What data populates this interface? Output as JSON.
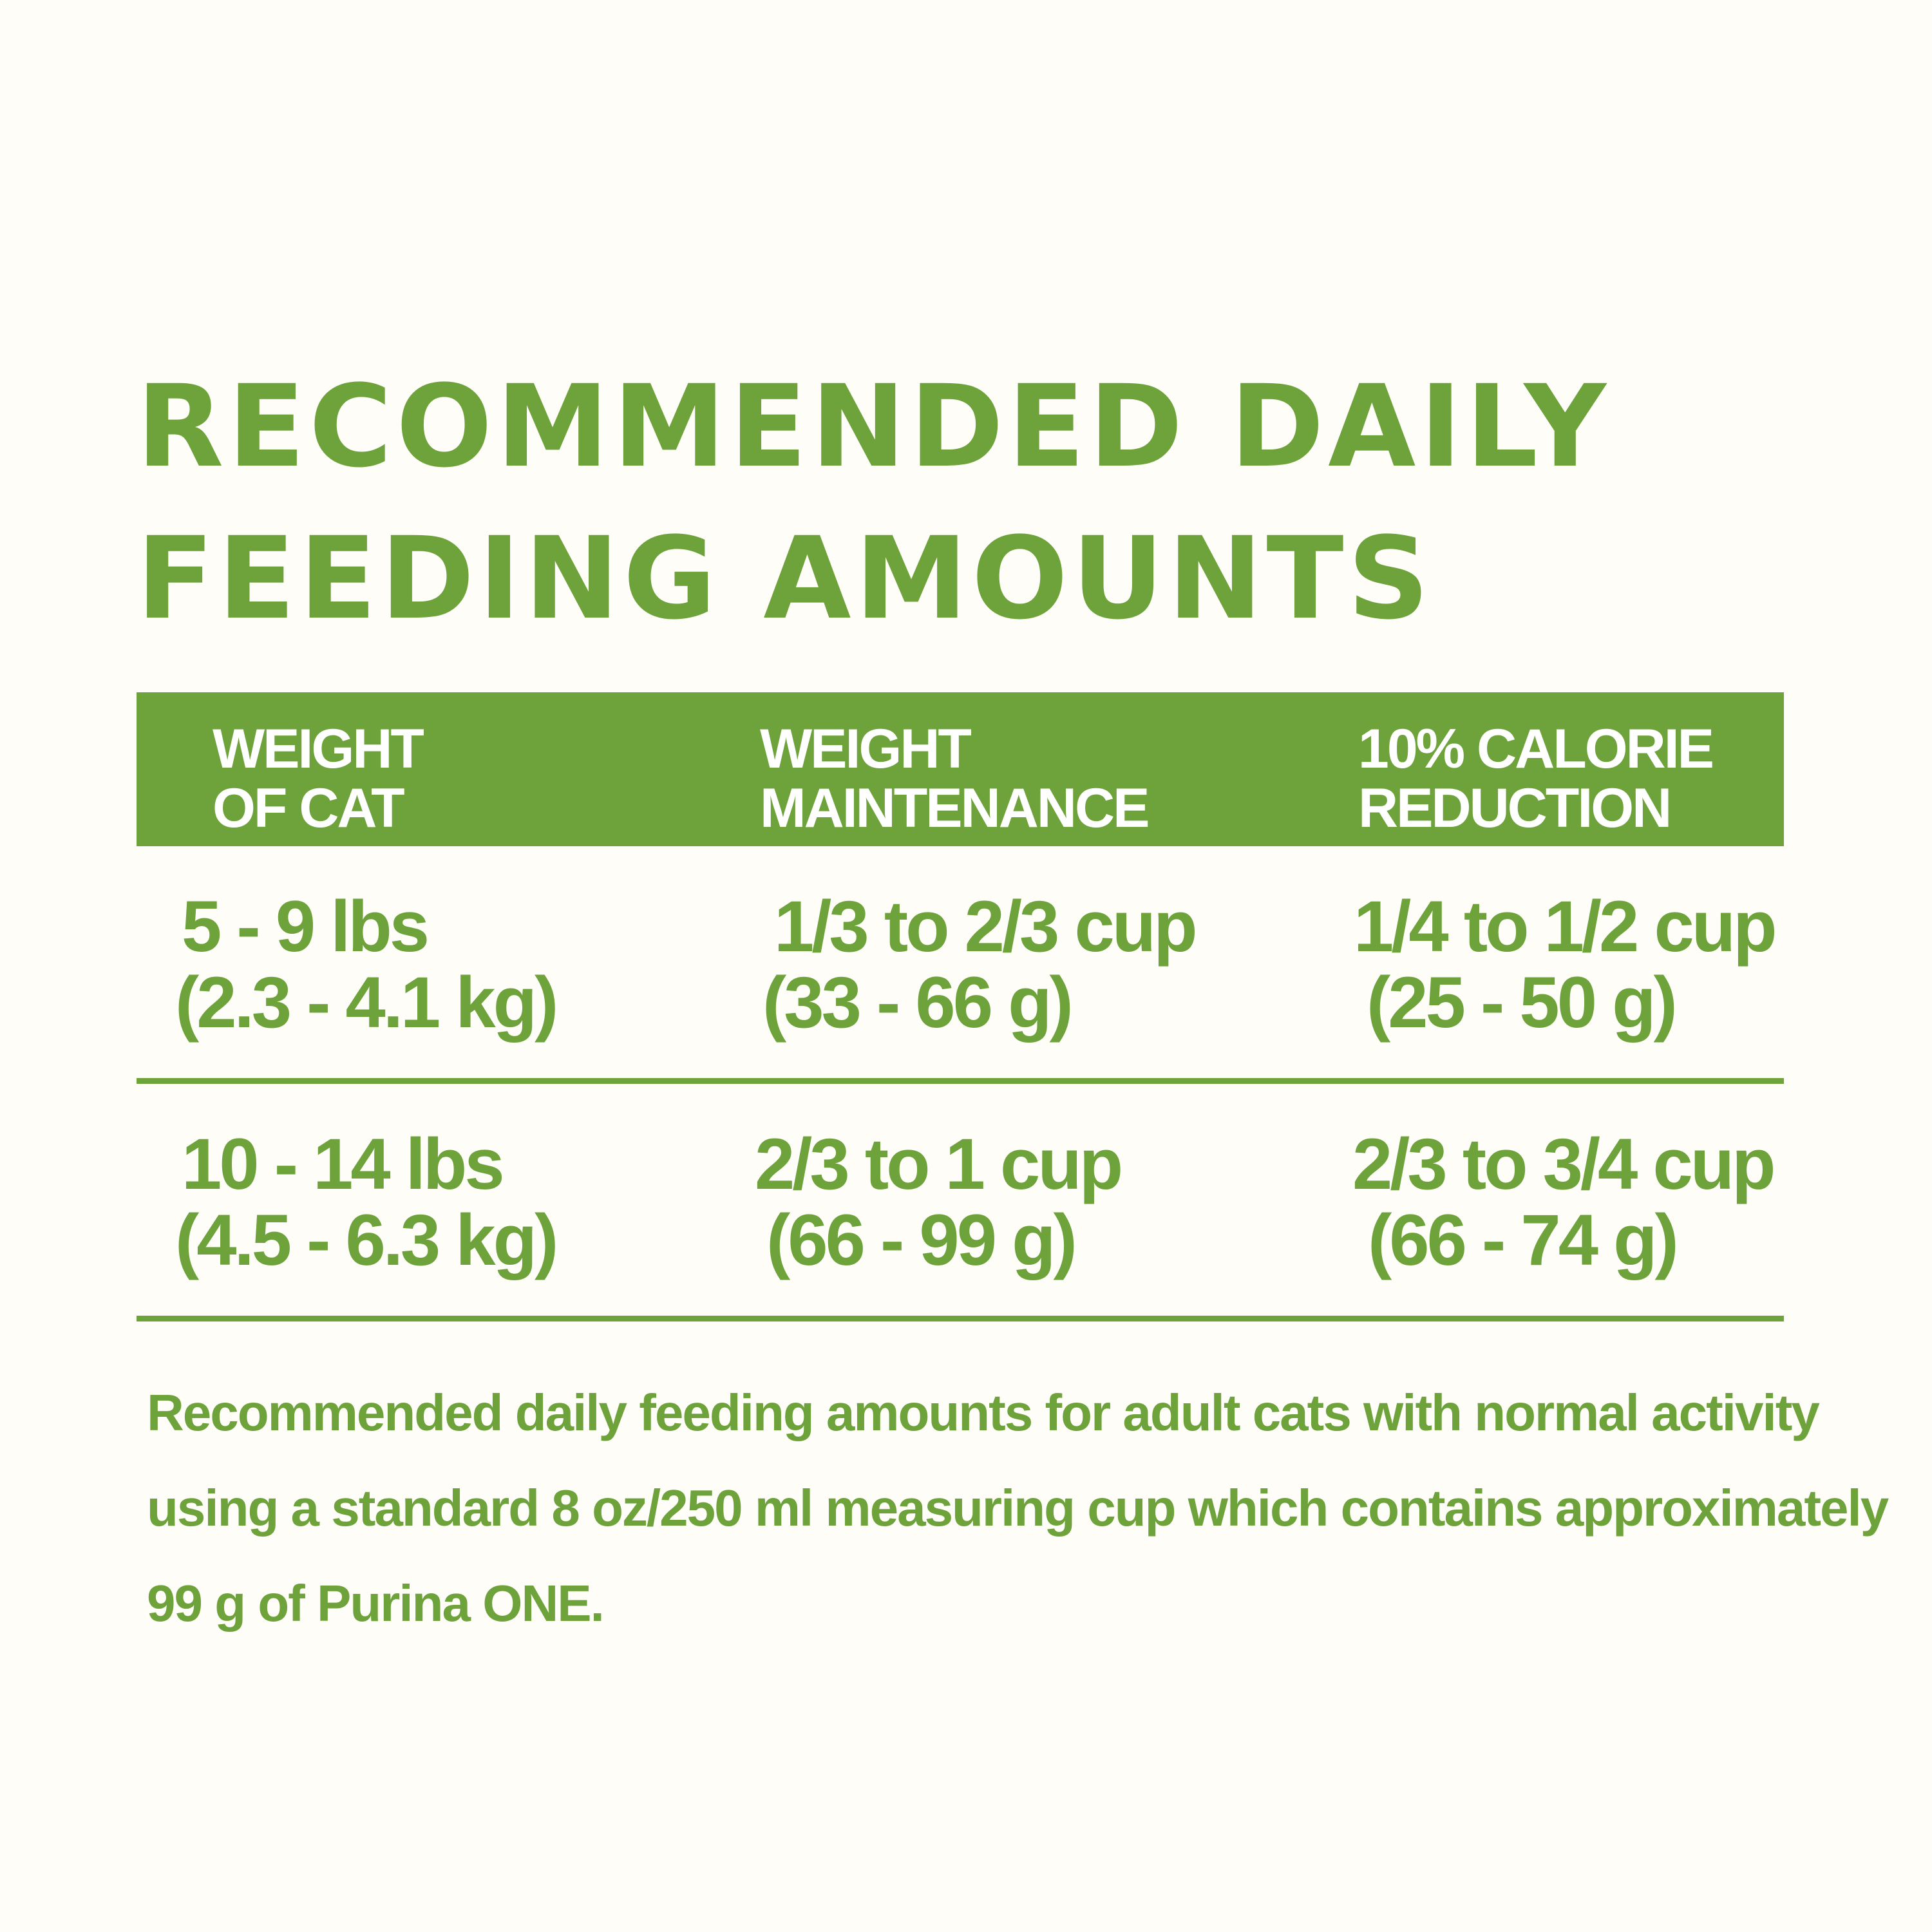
{
  "title": {
    "line1": "RECOMMENDED DAILY",
    "line2": "FEEDING AMOUNTS"
  },
  "table": {
    "headers": [
      {
        "line1": "WEIGHT",
        "line2": "OF CAT"
      },
      {
        "line1": "WEIGHT",
        "line2": "MAINTENANCE"
      },
      {
        "line1": "10% CALORIE",
        "line2": "REDUCTION"
      }
    ],
    "rows": [
      {
        "cat_weight": {
          "line1": "5 - 9 lbs",
          "line2": "(2.3 - 4.1 kg)"
        },
        "maintenance": {
          "line1": "1/3 to 2/3 cup",
          "line2": "(33 - 66 g)"
        },
        "reduction": {
          "line1": "1/4 to 1/2 cup",
          "line2": "(25 - 50 g)"
        }
      },
      {
        "cat_weight": {
          "line1": "10 - 14 lbs",
          "line2": "(4.5 - 6.3 kg)"
        },
        "maintenance": {
          "line1": "2/3 to 1 cup",
          "line2": "(66 - 99 g)"
        },
        "reduction": {
          "line1": "2/3 to 3/4 cup",
          "line2": "(66 - 74 g)"
        }
      }
    ]
  },
  "note": {
    "line1": "Recommended daily feeding amounts for adult cats with normal activity",
    "line2": "using a standard 8 oz/250 ml measuring cup which contains approximately",
    "line3": "99 g of Purina ONE."
  },
  "colors": {
    "accent": "#6ea33b",
    "background": "#fffdf8",
    "header_text": "#ffffff"
  }
}
